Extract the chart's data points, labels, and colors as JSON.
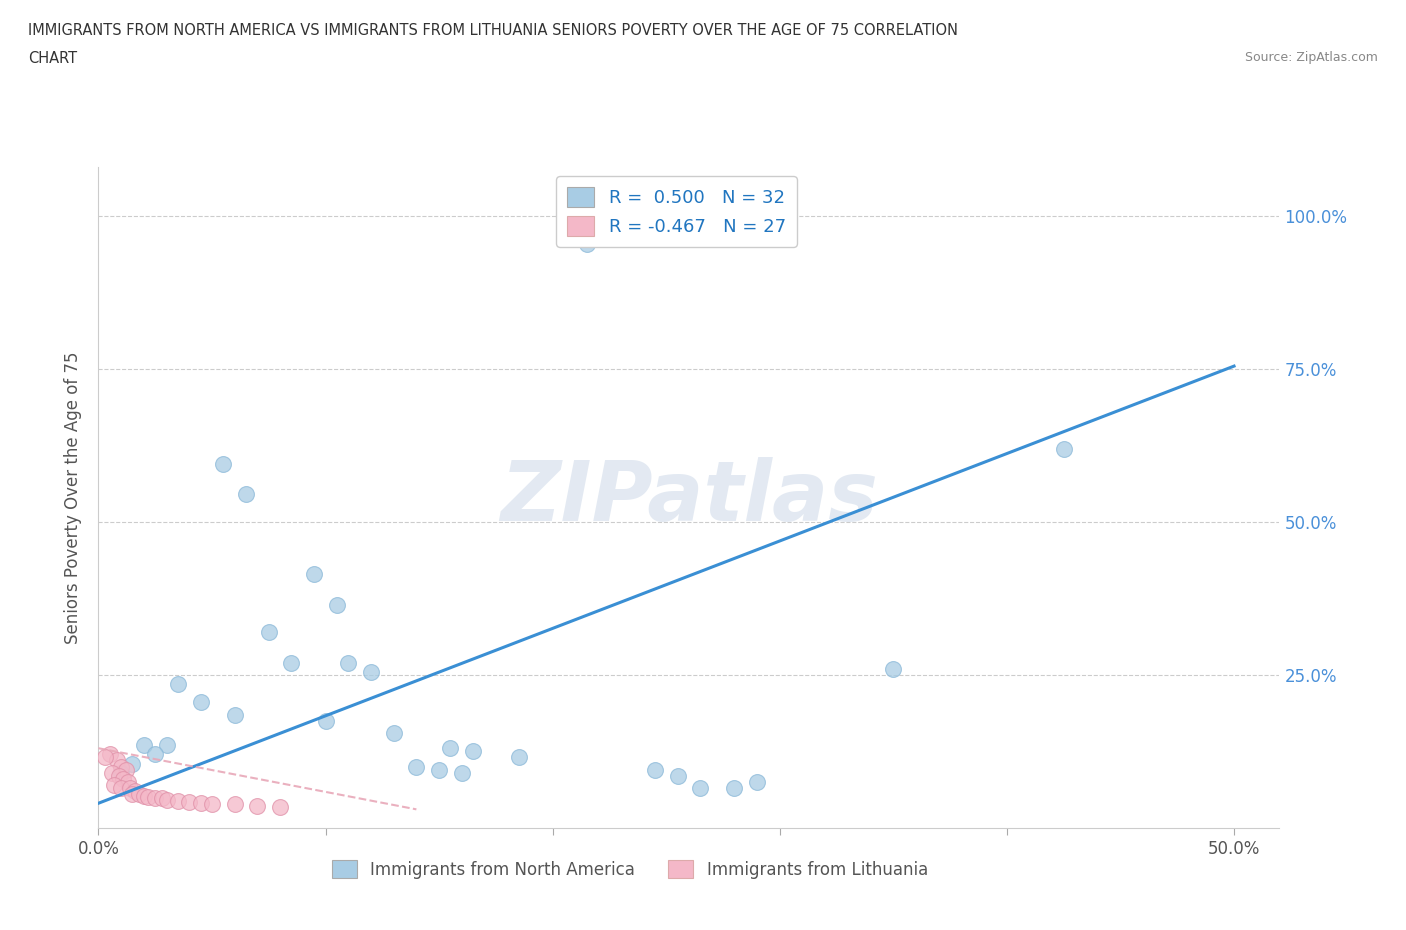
{
  "title_line1": "IMMIGRANTS FROM NORTH AMERICA VS IMMIGRANTS FROM LITHUANIA SENIORS POVERTY OVER THE AGE OF 75 CORRELATION",
  "title_line2": "CHART",
  "source": "Source: ZipAtlas.com",
  "ylabel": "Seniors Poverty Over the Age of 75",
  "R_blue": 0.5,
  "N_blue": 32,
  "R_pink": -0.467,
  "N_pink": 27,
  "legend_label_blue": "Immigrants from North America",
  "legend_label_pink": "Immigrants from Lithuania",
  "blue_color": "#a8cce4",
  "pink_color": "#f4b8c8",
  "blue_line_color": "#3a8fd4",
  "pink_line_color": "#e8a8b8",
  "blue_dots": [
    [
      0.215,
      0.955
    ],
    [
      0.055,
      0.595
    ],
    [
      0.065,
      0.545
    ],
    [
      0.095,
      0.415
    ],
    [
      0.105,
      0.365
    ],
    [
      0.075,
      0.32
    ],
    [
      0.085,
      0.27
    ],
    [
      0.11,
      0.27
    ],
    [
      0.12,
      0.255
    ],
    [
      0.035,
      0.235
    ],
    [
      0.045,
      0.205
    ],
    [
      0.06,
      0.185
    ],
    [
      0.1,
      0.175
    ],
    [
      0.13,
      0.155
    ],
    [
      0.02,
      0.135
    ],
    [
      0.03,
      0.135
    ],
    [
      0.025,
      0.12
    ],
    [
      0.155,
      0.13
    ],
    [
      0.165,
      0.125
    ],
    [
      0.185,
      0.115
    ],
    [
      0.015,
      0.105
    ],
    [
      0.14,
      0.1
    ],
    [
      0.15,
      0.095
    ],
    [
      0.16,
      0.09
    ],
    [
      0.35,
      0.26
    ],
    [
      0.425,
      0.62
    ],
    [
      0.245,
      0.095
    ],
    [
      0.255,
      0.085
    ],
    [
      0.265,
      0.065
    ],
    [
      0.28,
      0.065
    ],
    [
      0.29,
      0.075
    ],
    [
      0.01,
      0.09
    ]
  ],
  "pink_dots": [
    [
      0.005,
      0.12
    ],
    [
      0.008,
      0.11
    ],
    [
      0.01,
      0.1
    ],
    [
      0.012,
      0.095
    ],
    [
      0.006,
      0.09
    ],
    [
      0.009,
      0.085
    ],
    [
      0.011,
      0.08
    ],
    [
      0.013,
      0.075
    ],
    [
      0.007,
      0.07
    ],
    [
      0.01,
      0.065
    ],
    [
      0.014,
      0.065
    ],
    [
      0.016,
      0.06
    ],
    [
      0.015,
      0.055
    ],
    [
      0.018,
      0.055
    ],
    [
      0.02,
      0.052
    ],
    [
      0.022,
      0.05
    ],
    [
      0.025,
      0.048
    ],
    [
      0.028,
      0.048
    ],
    [
      0.03,
      0.046
    ],
    [
      0.035,
      0.044
    ],
    [
      0.04,
      0.042
    ],
    [
      0.045,
      0.04
    ],
    [
      0.05,
      0.038
    ],
    [
      0.06,
      0.038
    ],
    [
      0.07,
      0.036
    ],
    [
      0.08,
      0.034
    ],
    [
      0.003,
      0.115
    ]
  ],
  "blue_line": [
    [
      0.0,
      0.04
    ],
    [
      0.5,
      0.755
    ]
  ],
  "pink_line": [
    [
      0.0,
      0.13
    ],
    [
      0.14,
      0.03
    ]
  ],
  "xlim": [
    0.0,
    0.52
  ],
  "ylim": [
    0.0,
    1.08
  ],
  "xticks": [
    0.0,
    0.1,
    0.2,
    0.3,
    0.4,
    0.5
  ],
  "xticklabels": [
    "0.0%",
    "",
    "",
    "",
    "",
    "50.0%"
  ],
  "ytick_positions": [
    0.25,
    0.5,
    0.75,
    1.0
  ],
  "ytick_labels": [
    "25.0%",
    "50.0%",
    "75.0%",
    "100.0%"
  ],
  "grid_lines": [
    0.25,
    0.5,
    0.75,
    1.0
  ]
}
